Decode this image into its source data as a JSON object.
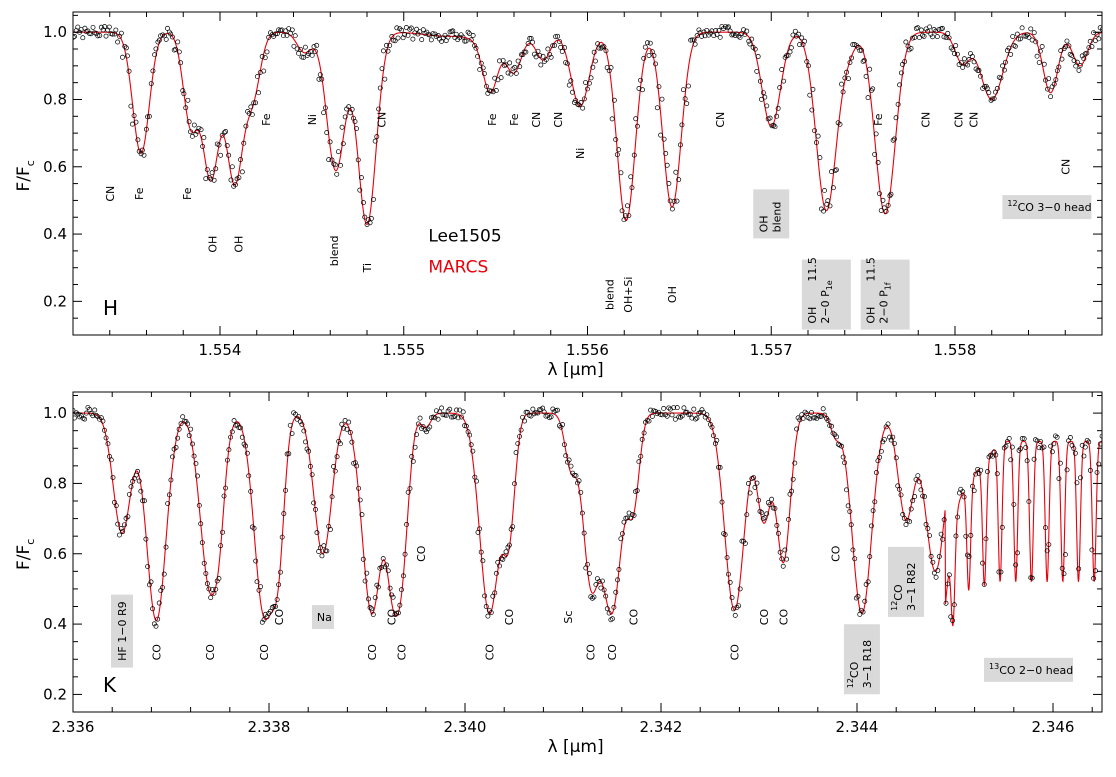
{
  "chart_data": [
    {
      "type": "line",
      "panel_label": "H",
      "xlabel": "λ",
      "xlabel_unit": "[μm]",
      "ylabel": "F/F",
      "ylabel_sub": "c",
      "xlim": [
        1.5532,
        1.5588
      ],
      "ylim": [
        0.1,
        1.06
      ],
      "xticks": [
        1.554,
        1.555,
        1.556,
        1.557,
        1.558
      ],
      "xtick_labels": [
        "1.554",
        "1.555",
        "1.556",
        "1.557",
        "1.558"
      ],
      "yticks": [
        0.2,
        0.4,
        0.6,
        0.8,
        1.0
      ],
      "ytick_labels": [
        "0.2",
        "0.4",
        "0.6",
        "0.8",
        "1.0"
      ],
      "legend": [
        {
          "name": "Lee1505",
          "color": "#000000",
          "style": "open-circles"
        },
        {
          "name": "MARCS",
          "color": "#e8000b",
          "style": "line"
        }
      ],
      "continuum_wiggles": [
        {
          "x": 1.5552,
          "y": 0.99,
          "w": 0.0001
        },
        {
          "x": 1.5555,
          "y": 0.97,
          "w": 0.00012
        }
      ],
      "absorption_lines": [
        {
          "x": 1.55357,
          "depth": 0.36,
          "width": 4.5e-05
        },
        {
          "x": 1.55384,
          "depth": 0.27,
          "width": 4e-05
        },
        {
          "x": 1.55395,
          "depth": 0.43,
          "width": 4.5e-05
        },
        {
          "x": 1.55408,
          "depth": 0.44,
          "width": 4.5e-05
        },
        {
          "x": 1.55418,
          "depth": 0.18,
          "width": 4e-05
        },
        {
          "x": 1.55446,
          "depth": 0.06,
          "width": 4e-05
        },
        {
          "x": 1.55463,
          "depth": 0.41,
          "width": 5e-05
        },
        {
          "x": 1.5548,
          "depth": 0.57,
          "width": 5e-05
        },
        {
          "x": 1.55547,
          "depth": 0.15,
          "width": 4e-05
        },
        {
          "x": 1.5556,
          "depth": 0.1,
          "width": 4e-05
        },
        {
          "x": 1.55576,
          "depth": 0.08,
          "width": 4e-05
        },
        {
          "x": 1.55596,
          "depth": 0.22,
          "width": 5e-05
        },
        {
          "x": 1.55621,
          "depth": 0.56,
          "width": 5e-05
        },
        {
          "x": 1.55646,
          "depth": 0.52,
          "width": 5e-05
        },
        {
          "x": 1.557,
          "depth": 0.28,
          "width": 5e-05
        },
        {
          "x": 1.5573,
          "depth": 0.53,
          "width": 5.5e-05
        },
        {
          "x": 1.55742,
          "depth": 0.05,
          "width": 4e-05
        },
        {
          "x": 1.55762,
          "depth": 0.54,
          "width": 5.5e-05
        },
        {
          "x": 1.55804,
          "depth": 0.09,
          "width": 4e-05
        },
        {
          "x": 1.5582,
          "depth": 0.2,
          "width": 6e-05
        },
        {
          "x": 1.55852,
          "depth": 0.18,
          "width": 4e-05
        },
        {
          "x": 1.55868,
          "depth": 0.1,
          "width": 4e-05
        }
      ],
      "line_labels": [
        {
          "x": 1.5534,
          "y": 0.52,
          "text": "CN"
        },
        {
          "x": 1.55356,
          "y": 0.52,
          "text": "Fe"
        },
        {
          "x": 1.55382,
          "y": 0.52,
          "text": "Fe"
        },
        {
          "x": 1.55396,
          "y": 0.37,
          "text": "OH"
        },
        {
          "x": 1.5541,
          "y": 0.37,
          "text": "OH"
        },
        {
          "x": 1.55425,
          "y": 0.74,
          "text": "Fe"
        },
        {
          "x": 1.5545,
          "y": 0.74,
          "text": "Ni"
        },
        {
          "x": 1.55462,
          "y": 0.35,
          "text": "blend"
        },
        {
          "x": 1.5548,
          "y": 0.3,
          "text": "Ti"
        },
        {
          "x": 1.55488,
          "y": 0.74,
          "text": "CN"
        },
        {
          "x": 1.55548,
          "y": 0.74,
          "text": "Fe"
        },
        {
          "x": 1.5556,
          "y": 0.74,
          "text": "Fe"
        },
        {
          "x": 1.55572,
          "y": 0.74,
          "text": "CN"
        },
        {
          "x": 1.55584,
          "y": 0.74,
          "text": "CN"
        },
        {
          "x": 1.55596,
          "y": 0.64,
          "text": "Ni"
        },
        {
          "x": 1.55612,
          "y": 0.22,
          "text": "blend"
        },
        {
          "x": 1.55622,
          "y": 0.22,
          "text": "OH+Si"
        },
        {
          "x": 1.55646,
          "y": 0.22,
          "text": "OH"
        },
        {
          "x": 1.55672,
          "y": 0.74,
          "text": "CN"
        },
        {
          "x": 1.55758,
          "y": 0.74,
          "text": "Fe"
        },
        {
          "x": 1.55784,
          "y": 0.74,
          "text": "CN"
        },
        {
          "x": 1.55802,
          "y": 0.74,
          "text": "CN"
        },
        {
          "x": 1.5581,
          "y": 0.74,
          "text": "CN"
        },
        {
          "x": 1.5586,
          "y": 0.6,
          "text": "CN"
        }
      ],
      "boxed_labels": [
        {
          "x": 1.557,
          "y": 0.46,
          "lines": [
            "OH",
            "blend"
          ]
        },
        {
          "x": 1.5573,
          "y": 0.22,
          "lines": [
            "OH",
            "2−0 P",
            "11.5"
          ],
          "sub": "1e"
        },
        {
          "x": 1.55762,
          "y": 0.22,
          "lines": [
            "OH",
            "2−0 P",
            "11.5"
          ],
          "sub": "1f"
        },
        {
          "x": 1.5585,
          "y": 0.48,
          "lines": [
            "CO 3−0 head"
          ],
          "sup": "12",
          "horizontal": true
        }
      ]
    },
    {
      "type": "line",
      "panel_label": "K",
      "xlabel": "λ",
      "xlabel_unit": "[μm]",
      "ylabel": "F/F",
      "ylabel_sub": "c",
      "xlim": [
        2.336,
        2.3465
      ],
      "ylim": [
        0.15,
        1.06
      ],
      "xticks": [
        2.336,
        2.338,
        2.34,
        2.342,
        2.344,
        2.346
      ],
      "xtick_labels": [
        "2.336",
        "2.338",
        "2.340",
        "2.342",
        "2.344",
        "2.346"
      ],
      "yticks": [
        0.2,
        0.4,
        0.6,
        0.8,
        1.0
      ],
      "ytick_labels": [
        "0.2",
        "0.4",
        "0.6",
        "0.8",
        "1.0"
      ],
      "absorption_lines": [
        {
          "x": 2.3365,
          "depth": 0.34,
          "width": 9e-05
        },
        {
          "x": 2.33685,
          "depth": 0.59,
          "width": 0.0001
        },
        {
          "x": 2.3374,
          "depth": 0.5,
          "width": 0.0001
        },
        {
          "x": 2.3375,
          "depth": 0.1,
          "width": 5e-05
        },
        {
          "x": 2.33795,
          "depth": 0.57,
          "width": 0.0001
        },
        {
          "x": 2.3381,
          "depth": 0.3,
          "width": 6e-05
        },
        {
          "x": 2.33855,
          "depth": 0.4,
          "width": 9e-05
        },
        {
          "x": 2.33905,
          "depth": 0.57,
          "width": 0.0001
        },
        {
          "x": 2.33925,
          "depth": 0.3,
          "width": 6e-05
        },
        {
          "x": 2.33935,
          "depth": 0.44,
          "width": 7e-05
        },
        {
          "x": 2.3396,
          "depth": 0.04,
          "width": 5e-05
        },
        {
          "x": 2.34025,
          "depth": 0.57,
          "width": 0.0001
        },
        {
          "x": 2.34045,
          "depth": 0.31,
          "width": 6e-05
        },
        {
          "x": 2.34108,
          "depth": 0.15,
          "width": 6e-05
        },
        {
          "x": 2.34128,
          "depth": 0.45,
          "width": 8e-05
        },
        {
          "x": 2.3415,
          "depth": 0.56,
          "width": 0.0001
        },
        {
          "x": 2.34172,
          "depth": 0.24,
          "width": 6e-05
        },
        {
          "x": 2.34275,
          "depth": 0.56,
          "width": 0.0001
        },
        {
          "x": 2.34305,
          "depth": 0.3,
          "width": 7e-05
        },
        {
          "x": 2.34325,
          "depth": 0.42,
          "width": 7e-05
        },
        {
          "x": 2.34378,
          "depth": 0.06,
          "width": 5e-05
        },
        {
          "x": 2.34405,
          "depth": 0.57,
          "width": 0.0001
        },
        {
          "x": 2.3445,
          "depth": 0.3,
          "width": 8e-05
        },
        {
          "x": 2.3448,
          "depth": 0.45,
          "width": 0.0001
        }
      ],
      "bandhead": {
        "x_start": 2.3449,
        "x_end": 2.3465,
        "spacing": 0.00016,
        "depth": 0.4
      },
      "line_labels": [
        {
          "x": 2.33685,
          "y": 0.32,
          "text": "CO"
        },
        {
          "x": 2.3374,
          "y": 0.32,
          "text": "CO"
        },
        {
          "x": 2.33795,
          "y": 0.32,
          "text": "CO"
        },
        {
          "x": 2.3381,
          "y": 0.42,
          "text": "CO"
        },
        {
          "x": 2.33905,
          "y": 0.32,
          "text": "CO"
        },
        {
          "x": 2.33925,
          "y": 0.42,
          "text": "CO"
        },
        {
          "x": 2.33935,
          "y": 0.32,
          "text": "CO"
        },
        {
          "x": 2.33955,
          "y": 0.6,
          "text": "CO"
        },
        {
          "x": 2.34025,
          "y": 0.32,
          "text": "CO"
        },
        {
          "x": 2.34045,
          "y": 0.42,
          "text": "CO"
        },
        {
          "x": 2.34105,
          "y": 0.42,
          "text": "Sc"
        },
        {
          "x": 2.34128,
          "y": 0.32,
          "text": "CO"
        },
        {
          "x": 2.3415,
          "y": 0.32,
          "text": "CO"
        },
        {
          "x": 2.34172,
          "y": 0.42,
          "text": "CO"
        },
        {
          "x": 2.34275,
          "y": 0.32,
          "text": "CO"
        },
        {
          "x": 2.34305,
          "y": 0.42,
          "text": "CO"
        },
        {
          "x": 2.34325,
          "y": 0.42,
          "text": "CO"
        },
        {
          "x": 2.34378,
          "y": 0.6,
          "text": "CO"
        }
      ],
      "boxed_labels": [
        {
          "x": 2.3365,
          "y": 0.38,
          "lines": [
            "HF 1−0 R9"
          ],
          "vertical_single": true
        },
        {
          "x": 2.33855,
          "y": 0.42,
          "lines": [
            "Na"
          ],
          "horizontal": true
        },
        {
          "x": 2.34405,
          "y": 0.3,
          "lines": [
            "CO",
            "3−1  R18"
          ],
          "sup": "12"
        },
        {
          "x": 2.3445,
          "y": 0.52,
          "lines": [
            "CO",
            "3−1  R82"
          ],
          "sup": "12"
        },
        {
          "x": 2.34575,
          "y": 0.27,
          "lines": [
            "CO 2−0 head"
          ],
          "sup": "13",
          "horizontal": true
        }
      ]
    }
  ],
  "colors": {
    "model": "#e8000b",
    "observed": "#000000",
    "box_fill": "#d9d9d9"
  }
}
